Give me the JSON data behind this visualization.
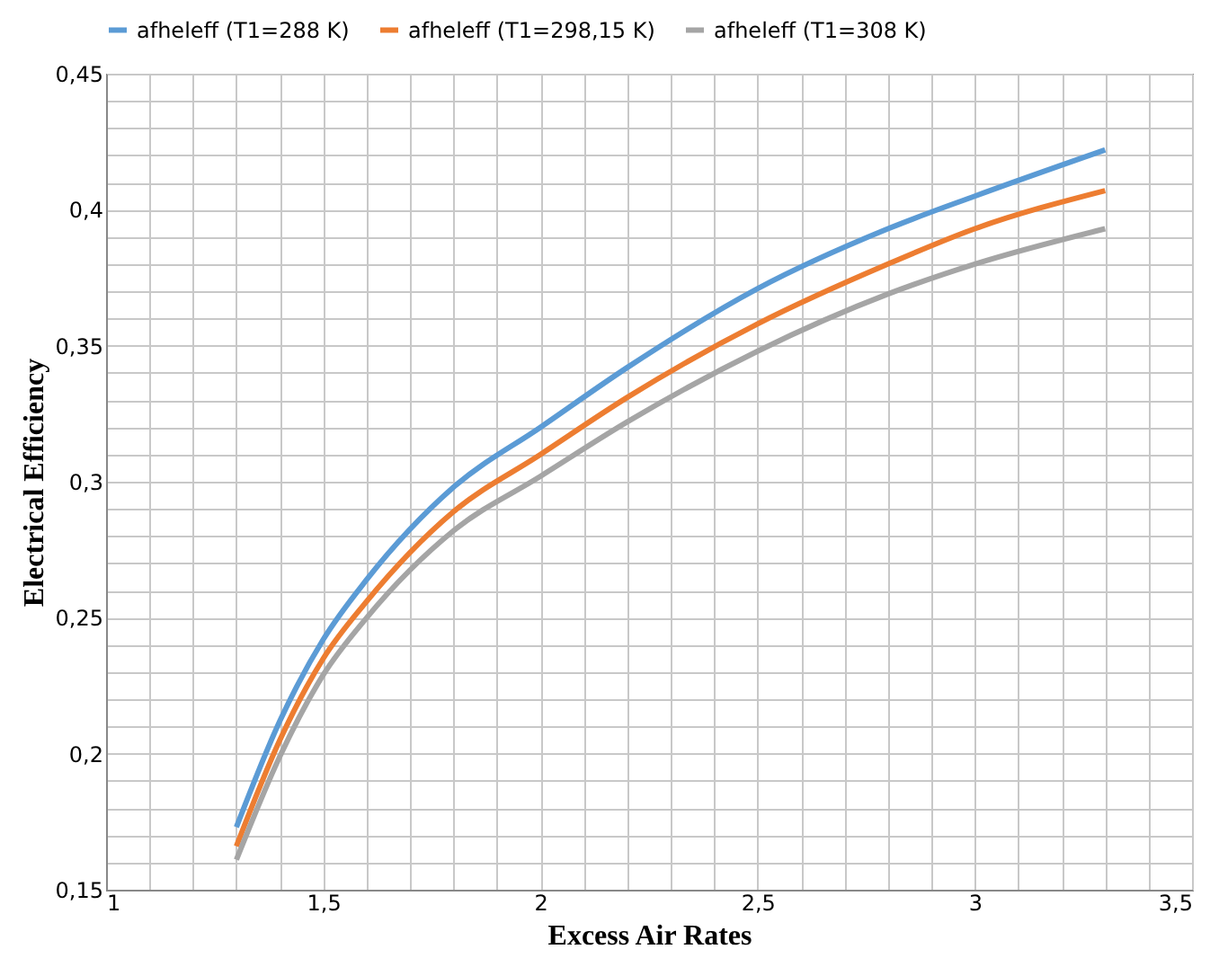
{
  "chart_data": {
    "type": "line",
    "xlabel": "Excess Air Rates",
    "ylabel": "Electrical Efficiency",
    "legend": "top",
    "grid": true,
    "marker": "none",
    "line_style": "solid",
    "xlim": [
      1,
      3.5
    ],
    "ylim": [
      0.15,
      0.45
    ],
    "xticks": [
      1,
      {
        "value": 1.1,
        "label": null
      },
      {
        "value": 1.2,
        "label": null
      },
      {
        "value": 1.3,
        "label": null
      },
      {
        "value": 1.4,
        "label": null
      },
      {
        "value": 1.5,
        "label": "1,5"
      },
      {
        "value": 1.6,
        "label": null
      },
      {
        "value": 1.7,
        "label": null
      },
      {
        "value": 1.8,
        "label": null
      },
      {
        "value": 1.9,
        "label": null
      },
      2,
      {
        "value": 2.1,
        "label": null
      },
      {
        "value": 2.2,
        "label": null
      },
      {
        "value": 2.3,
        "label": null
      },
      {
        "value": 2.4,
        "label": null
      },
      {
        "value": 2.5,
        "label": "2,5"
      },
      {
        "value": 2.6,
        "label": null
      },
      {
        "value": 2.7,
        "label": null
      },
      {
        "value": 2.8,
        "label": null
      },
      {
        "value": 2.9,
        "label": null
      },
      3,
      {
        "value": 3.1,
        "label": null
      },
      {
        "value": 3.2,
        "label": null
      },
      {
        "value": 3.3,
        "label": null
      },
      {
        "value": 3.4,
        "label": null
      },
      {
        "value": 3.5,
        "label": "3,5"
      }
    ],
    "yticks": [
      {
        "value": 0.15,
        "label": "0,15"
      },
      {
        "value": 0.16,
        "label": null
      },
      {
        "value": 0.17,
        "label": null
      },
      {
        "value": 0.18,
        "label": null
      },
      {
        "value": 0.19,
        "label": null
      },
      {
        "value": 0.2,
        "label": "0,2"
      },
      {
        "value": 0.21,
        "label": null
      },
      {
        "value": 0.22,
        "label": null
      },
      {
        "value": 0.23,
        "label": null
      },
      {
        "value": 0.24,
        "label": null
      },
      {
        "value": 0.25,
        "label": "0,25"
      },
      {
        "value": 0.26,
        "label": null
      },
      {
        "value": 0.27,
        "label": null
      },
      {
        "value": 0.28,
        "label": null
      },
      {
        "value": 0.29,
        "label": null
      },
      {
        "value": 0.3,
        "label": "0,3"
      },
      {
        "value": 0.31,
        "label": null
      },
      {
        "value": 0.32,
        "label": null
      },
      {
        "value": 0.33,
        "label": null
      },
      {
        "value": 0.34,
        "label": null
      },
      {
        "value": 0.35,
        "label": "0,35"
      },
      {
        "value": 0.36,
        "label": null
      },
      {
        "value": 0.37,
        "label": null
      },
      {
        "value": 0.38,
        "label": null
      },
      {
        "value": 0.39,
        "label": null
      },
      {
        "value": 0.4,
        "label": "0,4"
      },
      {
        "value": 0.41,
        "label": null
      },
      {
        "value": 0.42,
        "label": null
      },
      {
        "value": 0.43,
        "label": null
      },
      {
        "value": 0.44,
        "label": null
      },
      {
        "value": 0.45,
        "label": "0,45"
      }
    ],
    "x": [
      1.3,
      1.4,
      1.5,
      1.6,
      1.8,
      2,
      2.2,
      2.5,
      2.8,
      3,
      3.3
    ],
    "series": [
      {
        "name": "afheleff (T1=288 K)",
        "color": "#5b9bd5",
        "values": [
          0.173,
          0.212,
          0.242,
          0.264,
          0.298,
          0.32,
          0.342,
          0.371,
          0.393,
          0.405,
          0.422
        ]
      },
      {
        "name": "afheleff (T1=298,15 K)",
        "color": "#ed7d31",
        "values": [
          0.166,
          0.205,
          0.235,
          0.256,
          0.289,
          0.31,
          0.331,
          0.358,
          0.38,
          0.393,
          0.407
        ]
      },
      {
        "name": "afheleff (T1=308 K)",
        "color": "#a5a5a5",
        "values": [
          0.161,
          0.199,
          0.229,
          0.25,
          0.282,
          0.302,
          0.322,
          0.348,
          0.369,
          0.38,
          0.393
        ]
      }
    ]
  }
}
